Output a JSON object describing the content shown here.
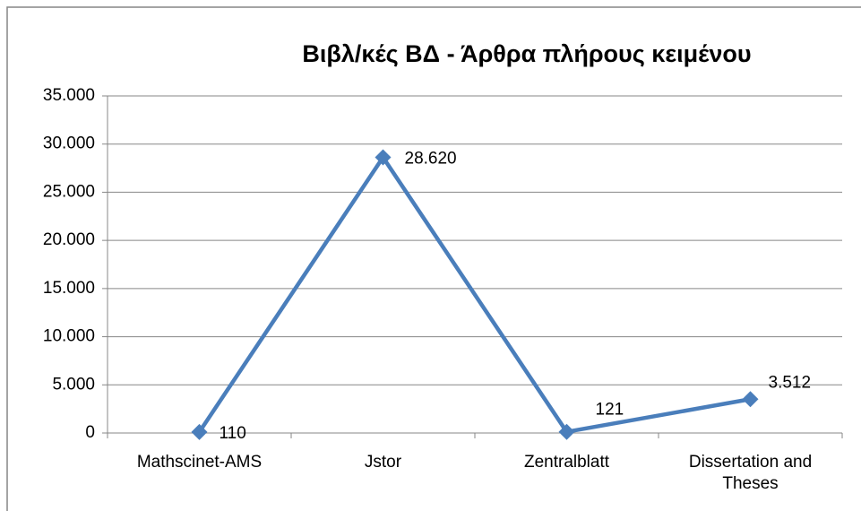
{
  "chart_data": {
    "type": "line",
    "title": "Βιβλ/κές ΒΔ - Άρθρα πλήρους κειμένου",
    "categories": [
      "Mathscinet-AMS",
      "Jstor",
      "Zentralblatt",
      "Dissertation and Theses"
    ],
    "values": [
      110,
      28620,
      121,
      3512
    ],
    "value_labels": [
      "110",
      "28.620",
      "121",
      "3.512"
    ],
    "color": "#4a7ebb",
    "ylim": [
      0,
      35000
    ],
    "yticks": [
      0,
      {
        "value": 5000,
        "label": "5.000"
      },
      {
        "value": 10000,
        "label": "10.000"
      },
      {
        "value": 15000,
        "label": "15.000"
      },
      {
        "value": 20000,
        "label": "20.000"
      },
      {
        "value": 25000,
        "label": "25.000"
      },
      {
        "value": 30000,
        "label": "30.000"
      },
      {
        "value": 35000,
        "label": "35.000"
      }
    ],
    "grid": true
  }
}
